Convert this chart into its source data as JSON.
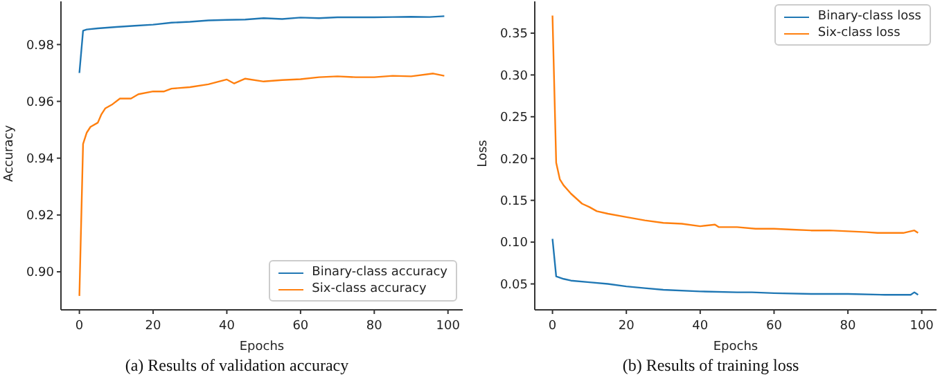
{
  "chart_data": [
    {
      "type": "line",
      "title": "(a)  Results of validation accuracy",
      "xlabel": "Epochs",
      "ylabel": "Accuracy",
      "xlim": [
        -5,
        104
      ],
      "xticks": [
        0,
        20,
        40,
        60,
        80,
        100
      ],
      "ylim": [
        0.8866,
        0.9952
      ],
      "yticks": [
        {
          "value": 0.9,
          "label": "0.90"
        },
        {
          "value": 0.92,
          "label": "0.92"
        },
        {
          "value": 0.94,
          "label": "0.94"
        },
        {
          "value": 0.96,
          "label": "0.96"
        },
        {
          "value": 0.98,
          "label": "0.98"
        }
      ],
      "grid": false,
      "legend": "bottom right",
      "marker": "none",
      "line_style": "solid",
      "series": [
        {
          "name": "Binary-class accuracy",
          "color": "#1f77b4",
          "x": [
            0,
            1,
            2,
            5,
            10,
            15,
            20,
            25,
            30,
            35,
            40,
            45,
            50,
            55,
            60,
            65,
            70,
            75,
            80,
            85,
            90,
            95,
            99
          ],
          "values": [
            0.97,
            0.9849,
            0.9853,
            0.9857,
            0.9862,
            0.9866,
            0.987,
            0.9877,
            0.988,
            0.9885,
            0.9887,
            0.9888,
            0.9893,
            0.989,
            0.9895,
            0.9893,
            0.9896,
            0.9896,
            0.9896,
            0.9897,
            0.9898,
            0.9897,
            0.99
          ]
        },
        {
          "name": "Six-class accuracy",
          "color": "#ff7f0e",
          "x": [
            0,
            1,
            2,
            3,
            5,
            6,
            7,
            9,
            11,
            14,
            16,
            20,
            23,
            25,
            30,
            35,
            40,
            42,
            45,
            50,
            55,
            60,
            65,
            70,
            75,
            80,
            85,
            90,
            96,
            99
          ],
          "values": [
            0.8915,
            0.945,
            0.949,
            0.951,
            0.9525,
            0.9555,
            0.9575,
            0.959,
            0.961,
            0.961,
            0.9625,
            0.9635,
            0.9635,
            0.9645,
            0.965,
            0.966,
            0.9677,
            0.9663,
            0.968,
            0.967,
            0.9675,
            0.9678,
            0.9685,
            0.9688,
            0.9685,
            0.9685,
            0.969,
            0.9688,
            0.9698,
            0.969
          ]
        }
      ]
    },
    {
      "type": "line",
      "title": "(b)  Results of training loss",
      "xlabel": "Epochs",
      "ylabel": "Loss",
      "xlim": [
        -4.8,
        104
      ],
      "xticks": [
        0,
        20,
        40,
        60,
        80,
        100
      ],
      "ylim": [
        0.019,
        0.388
      ],
      "yticks": [
        {
          "value": 0.05,
          "label": "0.05"
        },
        {
          "value": 0.1,
          "label": "0.10"
        },
        {
          "value": 0.15,
          "label": "0.15"
        },
        {
          "value": 0.2,
          "label": "0.20"
        },
        {
          "value": 0.25,
          "label": "0.25"
        },
        {
          "value": 0.3,
          "label": "0.30"
        },
        {
          "value": 0.35,
          "label": "0.35"
        }
      ],
      "grid": false,
      "legend": "top right",
      "marker": "none",
      "line_style": "solid",
      "series": [
        {
          "name": "Binary-class loss",
          "color": "#1f77b4",
          "x": [
            0,
            1,
            3,
            5,
            10,
            15,
            20,
            25,
            30,
            40,
            50,
            54,
            60,
            70,
            80,
            90,
            97,
            98,
            99
          ],
          "values": [
            0.104,
            0.059,
            0.056,
            0.054,
            0.052,
            0.05,
            0.047,
            0.045,
            0.043,
            0.041,
            0.04,
            0.04,
            0.039,
            0.038,
            0.038,
            0.037,
            0.037,
            0.04,
            0.037
          ]
        },
        {
          "name": "Six-class loss",
          "color": "#ff7f0e",
          "x": [
            0,
            1,
            2,
            3,
            5,
            8,
            10,
            12,
            15,
            20,
            25,
            30,
            35,
            40,
            44,
            45,
            50,
            55,
            60,
            65,
            70,
            75,
            80,
            85,
            88,
            95,
            98,
            99
          ],
          "values": [
            0.371,
            0.195,
            0.175,
            0.168,
            0.158,
            0.146,
            0.142,
            0.137,
            0.134,
            0.13,
            0.126,
            0.123,
            0.122,
            0.119,
            0.121,
            0.118,
            0.118,
            0.116,
            0.116,
            0.115,
            0.114,
            0.114,
            0.113,
            0.112,
            0.111,
            0.111,
            0.114,
            0.111
          ]
        }
      ]
    }
  ]
}
